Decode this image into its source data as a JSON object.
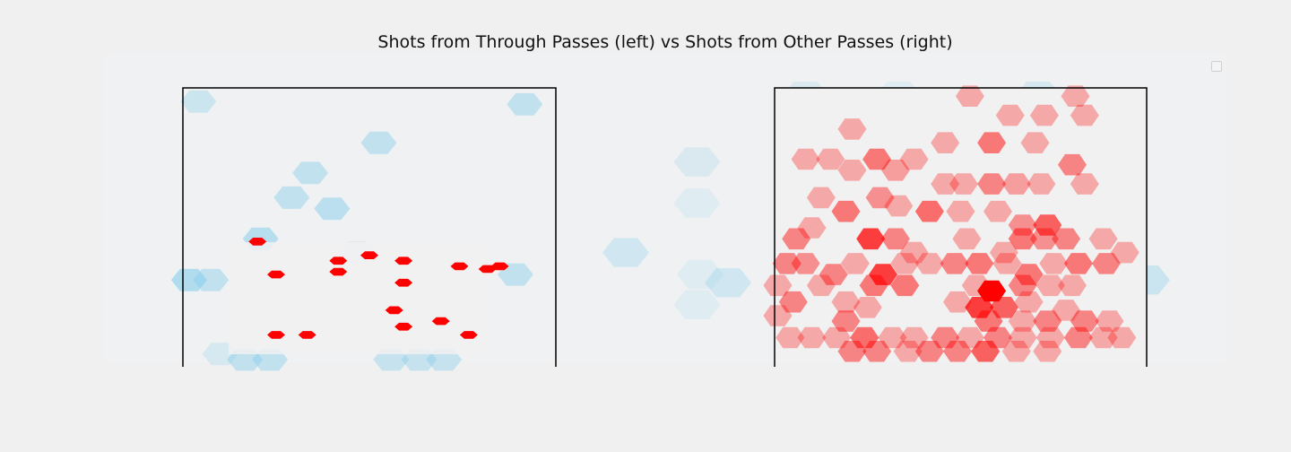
{
  "chart_data": {
    "type": "heatmap",
    "title": "Shots from Through Passes (left) vs Shots from Other Passes (right)",
    "legend": "top-right",
    "grid": false,
    "colors": {
      "background": "#f0f0f0",
      "pitch": "#f1f1f1",
      "blue_hex": "#87ceeb",
      "red_hex": "#ff0000",
      "pitch_line": "#000000"
    },
    "panels": [
      {
        "name": "Through Passes",
        "blue_cells": [
          [
            0.5,
            9.5,
            0.35
          ],
          [
            3.5,
            6.0,
            0.45
          ],
          [
            2.5,
            4.5,
            0.55
          ],
          [
            0.2,
            3.0,
            0.6
          ],
          [
            0.9,
            3.0,
            0.45
          ],
          [
            1.2,
            0.3,
            0.25
          ],
          [
            2.0,
            0.1,
            0.45
          ],
          [
            2.8,
            0.1,
            0.45
          ],
          [
            6.7,
            0.1,
            0.4
          ],
          [
            7.6,
            0.1,
            0.4
          ],
          [
            8.4,
            0.1,
            0.4
          ],
          [
            10.7,
            3.2,
            0.45
          ],
          [
            6.3,
            8.0,
            0.45
          ],
          [
            4.1,
            6.9,
            0.45
          ],
          [
            4.8,
            5.6,
            0.5
          ],
          [
            11.0,
            9.4,
            0.45
          ],
          [
            5.6,
            4.0,
            0.2
          ]
        ],
        "red_cells": [
          [
            2.4,
            4.4,
            1.0
          ],
          [
            3.0,
            3.2,
            1.0
          ],
          [
            5.0,
            3.7,
            1.0
          ],
          [
            5.0,
            3.3,
            1.0
          ],
          [
            6.0,
            3.9,
            1.0
          ],
          [
            7.1,
            3.7,
            1.0
          ],
          [
            7.1,
            2.9,
            1.0
          ],
          [
            8.9,
            3.5,
            1.0
          ],
          [
            9.8,
            3.4,
            1.0
          ],
          [
            10.2,
            3.5,
            1.0
          ],
          [
            6.8,
            1.9,
            1.0
          ],
          [
            7.1,
            1.3,
            1.0
          ],
          [
            8.3,
            1.5,
            1.0
          ],
          [
            3.0,
            1.0,
            1.0
          ],
          [
            4.0,
            1.0,
            1.0
          ],
          [
            9.2,
            1.0,
            1.0
          ]
        ]
      },
      {
        "name": "Other Passes",
        "blue_cells": [
          [
            1.0,
            9.7,
            0.2
          ],
          [
            4.0,
            9.7,
            0.15
          ],
          [
            6.5,
            9.4,
            0.15
          ],
          [
            8.5,
            9.7,
            0.25
          ],
          [
            -2.5,
            7.3,
            0.2
          ],
          [
            -2.5,
            5.8,
            0.15
          ],
          [
            -4.8,
            4.0,
            0.3
          ],
          [
            -2.4,
            3.2,
            0.15
          ],
          [
            -1.5,
            2.9,
            0.3
          ],
          [
            -2.5,
            2.1,
            0.15
          ],
          [
            12.0,
            3.0,
            0.35
          ],
          [
            11.0,
            7.8,
            0.15
          ],
          [
            11.0,
            3.2,
            0.2
          ]
        ],
        "red_cells": [
          [
            6.3,
            9.7,
            0.3
          ],
          [
            7.6,
            9.0,
            0.3
          ],
          [
            8.7,
            9.0,
            0.3
          ],
          [
            9.7,
            9.7,
            0.3
          ],
          [
            10.0,
            9.0,
            0.3
          ],
          [
            2.5,
            8.5,
            0.3
          ],
          [
            5.5,
            8.0,
            0.3
          ],
          [
            7.0,
            8.0,
            0.5
          ],
          [
            8.4,
            8.0,
            0.3
          ],
          [
            1.0,
            7.4,
            0.3
          ],
          [
            1.8,
            7.4,
            0.3
          ],
          [
            2.5,
            7.0,
            0.3
          ],
          [
            3.3,
            7.4,
            0.5
          ],
          [
            3.9,
            7.0,
            0.35
          ],
          [
            4.5,
            7.4,
            0.3
          ],
          [
            5.5,
            6.5,
            0.3
          ],
          [
            6.1,
            6.5,
            0.3
          ],
          [
            7.0,
            6.5,
            0.45
          ],
          [
            7.8,
            6.5,
            0.35
          ],
          [
            8.6,
            6.5,
            0.3
          ],
          [
            9.6,
            7.2,
            0.45
          ],
          [
            10.0,
            6.5,
            0.3
          ],
          [
            1.5,
            6.0,
            0.3
          ],
          [
            2.3,
            5.5,
            0.5
          ],
          [
            3.4,
            6.0,
            0.4
          ],
          [
            4.0,
            5.7,
            0.3
          ],
          [
            5.0,
            5.5,
            0.55
          ],
          [
            6.0,
            5.5,
            0.3
          ],
          [
            7.2,
            5.5,
            0.3
          ],
          [
            8.0,
            5.0,
            0.4
          ],
          [
            8.8,
            5.0,
            0.6
          ],
          [
            0.7,
            4.5,
            0.45
          ],
          [
            1.2,
            4.9,
            0.3
          ],
          [
            3.1,
            4.5,
            0.75
          ],
          [
            3.9,
            4.5,
            0.45
          ],
          [
            4.5,
            4.0,
            0.3
          ],
          [
            6.2,
            4.5,
            0.3
          ],
          [
            7.4,
            4.0,
            0.3
          ],
          [
            8.0,
            4.5,
            0.5
          ],
          [
            8.7,
            4.5,
            0.4
          ],
          [
            9.4,
            4.5,
            0.45
          ],
          [
            10.6,
            4.5,
            0.3
          ],
          [
            11.3,
            4.0,
            0.3
          ],
          [
            0.4,
            3.6,
            0.45
          ],
          [
            1.0,
            3.6,
            0.4
          ],
          [
            1.9,
            3.2,
            0.45
          ],
          [
            2.6,
            3.6,
            0.3
          ],
          [
            3.5,
            3.2,
            0.75
          ],
          [
            4.2,
            3.6,
            0.3
          ],
          [
            5.0,
            3.6,
            0.3
          ],
          [
            5.8,
            3.6,
            0.45
          ],
          [
            6.6,
            3.6,
            0.5
          ],
          [
            7.5,
            3.6,
            0.3
          ],
          [
            8.2,
            3.2,
            0.5
          ],
          [
            9.0,
            3.6,
            0.3
          ],
          [
            9.8,
            3.6,
            0.5
          ],
          [
            10.7,
            3.6,
            0.45
          ],
          [
            0.1,
            2.8,
            0.3
          ],
          [
            1.5,
            2.8,
            0.3
          ],
          [
            3.2,
            2.8,
            0.5
          ],
          [
            4.2,
            2.8,
            0.5
          ],
          [
            6.5,
            2.8,
            0.3
          ],
          [
            7.0,
            2.6,
            1.0
          ],
          [
            8.0,
            2.8,
            0.45
          ],
          [
            8.9,
            2.8,
            0.3
          ],
          [
            9.6,
            2.8,
            0.3
          ],
          [
            0.6,
            2.2,
            0.45
          ],
          [
            2.3,
            2.2,
            0.3
          ],
          [
            3.0,
            2.0,
            0.3
          ],
          [
            5.9,
            2.2,
            0.3
          ],
          [
            6.6,
            2.0,
            0.75
          ],
          [
            7.4,
            2.0,
            0.6
          ],
          [
            8.2,
            2.2,
            0.3
          ],
          [
            9.4,
            1.9,
            0.3
          ],
          [
            0.1,
            1.7,
            0.3
          ],
          [
            2.3,
            1.5,
            0.45
          ],
          [
            6.9,
            1.5,
            0.5
          ],
          [
            8.0,
            1.5,
            0.3
          ],
          [
            8.8,
            1.5,
            0.45
          ],
          [
            10.0,
            1.5,
            0.45
          ],
          [
            10.8,
            1.5,
            0.3
          ],
          [
            0.5,
            0.9,
            0.3
          ],
          [
            1.2,
            0.9,
            0.3
          ],
          [
            2.0,
            0.9,
            0.3
          ],
          [
            2.9,
            0.9,
            0.55
          ],
          [
            3.8,
            0.9,
            0.3
          ],
          [
            4.5,
            0.9,
            0.3
          ],
          [
            5.5,
            0.9,
            0.45
          ],
          [
            6.3,
            0.9,
            0.3
          ],
          [
            7.2,
            0.9,
            0.45
          ],
          [
            8.0,
            0.9,
            0.3
          ],
          [
            8.9,
            0.9,
            0.3
          ],
          [
            9.8,
            0.9,
            0.45
          ],
          [
            10.6,
            0.9,
            0.3
          ],
          [
            11.2,
            0.9,
            0.3
          ],
          [
            2.5,
            0.4,
            0.45
          ],
          [
            3.3,
            0.4,
            0.45
          ],
          [
            4.3,
            0.4,
            0.3
          ],
          [
            5.0,
            0.4,
            0.45
          ],
          [
            5.9,
            0.4,
            0.45
          ],
          [
            6.8,
            0.4,
            0.6
          ],
          [
            7.8,
            0.4,
            0.3
          ],
          [
            8.8,
            0.4,
            0.3
          ]
        ]
      }
    ]
  }
}
